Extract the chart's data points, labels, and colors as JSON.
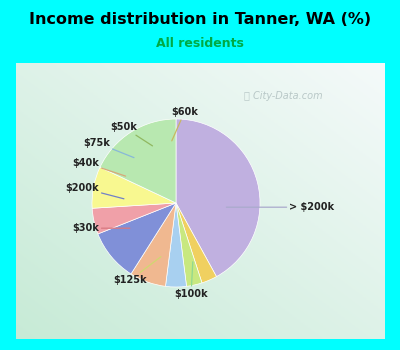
{
  "title": "Income distribution in Tanner, WA (%)",
  "subtitle": "All residents",
  "title_color": "#000000",
  "subtitle_color": "#00aa44",
  "watermark": "City-Data.com",
  "background_outer": "#00ffff",
  "background_inner_left": "#c8e8d8",
  "background_inner_right": "#e8f4f0",
  "labels": [
    "> $200k",
    "$60k",
    "$50k",
    "$75k",
    "$40k",
    "$200k",
    "$30k",
    "$125k",
    "$100k"
  ],
  "values": [
    42,
    3,
    3,
    4,
    7,
    10,
    5,
    8,
    18
  ],
  "colors": [
    "#c0b0e0",
    "#f0d060",
    "#c8e880",
    "#a8d0f0",
    "#f0b890",
    "#8090d8",
    "#f0a0a8",
    "#f8f890",
    "#b8e8b0"
  ],
  "startangle": 90,
  "counterclock": false
}
